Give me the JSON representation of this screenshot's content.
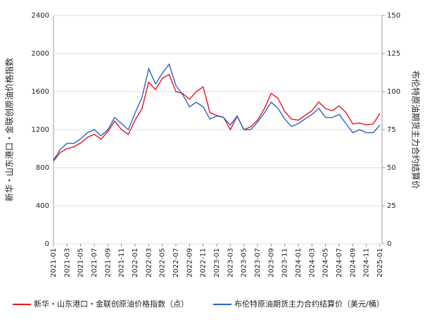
{
  "chart_data": {
    "type": "line",
    "y_label": "新华・山东港口・金联创原油价格指数",
    "y2_label": "布伦特原油期货主力合约结算价",
    "x": [
      "2021-01",
      "2021-02",
      "2021-03",
      "2021-04",
      "2021-05",
      "2021-06",
      "2021-07",
      "2021-08",
      "2021-09",
      "2021-10",
      "2021-11",
      "2021-12",
      "2022-01",
      "2022-02",
      "2022-03",
      "2022-04",
      "2022-05",
      "2022-06",
      "2022-07",
      "2022-08",
      "2022-09",
      "2022-10",
      "2022-11",
      "2022-12",
      "2023-01",
      "2023-02",
      "2023-03",
      "2023-04",
      "2023-05",
      "2023-06",
      "2023-07",
      "2023-08",
      "2023-09",
      "2023-10",
      "2023-11",
      "2023-12",
      "2024-01",
      "2024-02",
      "2024-03",
      "2024-04",
      "2024-05",
      "2024-06",
      "2024-07",
      "2024-08",
      "2024-09",
      "2024-10",
      "2024-11",
      "2024-12",
      "2025-01"
    ],
    "xlim": [
      "2021-01",
      "2025-01"
    ],
    "xticks": [
      "2021-01",
      "2021-03",
      "2021-05",
      "2021-07",
      "2021-09",
      "2021-11",
      "2022-01",
      "2022-03",
      "2022-05",
      "2022-07",
      "2022-09",
      "2022-11",
      "2023-01",
      "2023-03",
      "2023-05",
      "2023-07",
      "2023-09",
      "2023-11",
      "2024-01",
      "2024-03",
      "2024-05",
      "2024-07",
      "2024-09",
      "2024-11",
      "2025-01"
    ],
    "ylim": [
      0,
      2400
    ],
    "yticks": [
      0,
      400,
      800,
      1200,
      1600,
      2000,
      2400
    ],
    "y2lim": [
      0,
      150
    ],
    "y2ticks": [
      0,
      25,
      50,
      75,
      100,
      125,
      150
    ],
    "grid": true,
    "series": [
      {
        "name": "新华・山东港口・金联创原油价格指数（点）",
        "color": "#e8141c",
        "values": [
          870,
          960,
          1000,
          1020,
          1060,
          1120,
          1150,
          1100,
          1180,
          1290,
          1200,
          1150,
          1300,
          1420,
          1700,
          1620,
          1740,
          1780,
          1600,
          1580,
          1520,
          1600,
          1650,
          1380,
          1350,
          1330,
          1200,
          1340,
          1200,
          1230,
          1300,
          1420,
          1580,
          1530,
          1390,
          1310,
          1300,
          1350,
          1400,
          1490,
          1420,
          1400,
          1450,
          1380,
          1260,
          1270,
          1250,
          1260,
          1370
        ]
      },
      {
        "name": "布伦特原油期货主力合约结算价（美元/桶）",
        "color": "#2a64c8",
        "axis": "y2",
        "values": [
          55,
          62,
          66,
          66,
          69,
          73,
          75,
          71,
          75,
          83,
          79,
          75,
          86,
          96,
          115,
          105,
          112,
          118,
          104,
          98,
          90,
          93,
          90,
          82,
          84,
          83,
          78,
          84,
          75,
          75,
          80,
          86,
          93,
          89,
          82,
          77,
          79,
          82,
          85,
          89,
          83,
          83,
          85,
          79,
          73,
          75,
          73,
          73,
          78
        ]
      }
    ]
  }
}
